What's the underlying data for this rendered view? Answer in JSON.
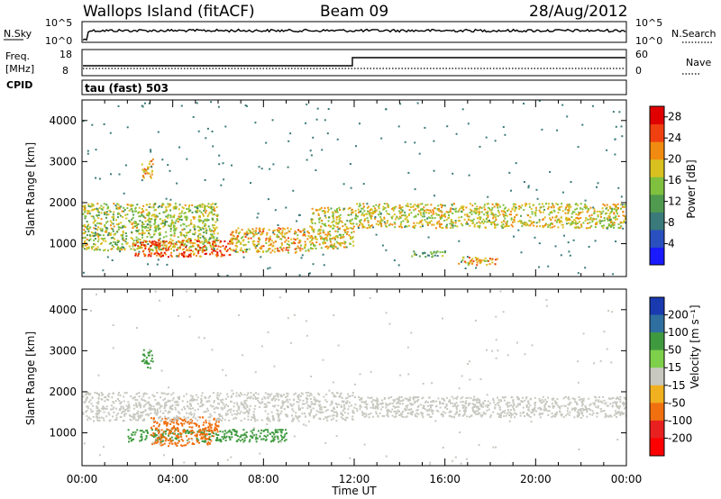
{
  "header": {
    "station": "Wallops Island (fitACF)",
    "beam": "Beam 09",
    "date": "28/Aug/2012"
  },
  "noise_panel": {
    "left_label": "N.Sky",
    "left_top_tick": "10^5",
    "left_bottom_tick": "10^0",
    "right_label": "N.Search",
    "right_top_tick": "10^5",
    "right_bottom_tick": "10^0"
  },
  "freq_panel": {
    "left_label_line1": "Freq.",
    "left_label_line2": "[MHz]",
    "left_top_tick": "18",
    "left_bottom_tick": "8",
    "cpid_label": "CPID",
    "right_label": "Nave",
    "right_top_tick": "60",
    "right_bottom_tick": "0"
  },
  "cpid_text": "tau (fast) 503",
  "chart_data": [
    {
      "type": "heatmap",
      "name": "power",
      "ylabel": "Slant Range [km]",
      "xlabel": "",
      "ylim": [
        200,
        4500
      ],
      "yticks": [
        "1000",
        "2000",
        "3000",
        "4000"
      ],
      "colorbar": {
        "label": "Power [dB]",
        "ticks": [
          "4",
          "8",
          "12",
          "16",
          "20",
          "24",
          "28"
        ],
        "range": [
          0,
          30
        ],
        "colors": [
          "#1a1aff",
          "#2a4fbf",
          "#3a7a7a",
          "#4f9a4f",
          "#7fc03f",
          "#d8c020",
          "#f08a10",
          "#f04010",
          "#e00000"
        ]
      },
      "regions": [
        {
          "label": "mid-latitude band 00-06 UT",
          "t": [
            0.0,
            6.0
          ],
          "range_km": [
            850,
            2000
          ],
          "power_db": 16
        },
        {
          "label": "strong echo near 04-05 UT",
          "t": [
            2.2,
            6.5
          ],
          "range_km": [
            700,
            1100
          ],
          "power_db": 24
        },
        {
          "label": "patch near 03 UT",
          "t": [
            2.6,
            3.1
          ],
          "range_km": [
            2600,
            3100
          ],
          "power_db": 20
        },
        {
          "label": "feature 07-10 UT",
          "t": [
            6.5,
            10.0
          ],
          "range_km": [
            800,
            1400
          ],
          "power_db": 20
        },
        {
          "label": "feature 10-12 UT",
          "t": [
            10.0,
            12.0
          ],
          "range_km": [
            900,
            1900
          ],
          "power_db": 18
        },
        {
          "label": "band 12-24 UT",
          "t": [
            12.0,
            24.0
          ],
          "range_km": [
            1400,
            2000
          ],
          "power_db": 18
        },
        {
          "label": "patch 17-18 UT",
          "t": [
            16.5,
            18.3
          ],
          "range_km": [
            500,
            700
          ],
          "power_db": 20
        },
        {
          "label": "patch 15 UT",
          "t": [
            14.5,
            16.0
          ],
          "range_km": [
            700,
            850
          ],
          "power_db": 12
        }
      ]
    },
    {
      "type": "heatmap",
      "name": "velocity",
      "ylabel": "Slant Range [km]",
      "xlabel": "Time UT",
      "ylim": [
        200,
        4500
      ],
      "yticks": [
        "1000",
        "2000",
        "3000",
        "4000"
      ],
      "xticks": [
        "00:00",
        "04:00",
        "08:00",
        "12:00",
        "16:00",
        "20:00",
        "00:00"
      ],
      "xlim": [
        0,
        24
      ],
      "colorbar": {
        "label": "Velocity [m s⁻¹]",
        "ticks": [
          "200",
          "100",
          "50",
          "15",
          "-15",
          "-50",
          "-100",
          "-200"
        ],
        "colors": [
          "#1a3ab0",
          "#2f6f9f",
          "#3f9a3f",
          "#7ed04a",
          "#c8c8c0",
          "#f0b020",
          "#f07010",
          "#e82020",
          "#ff0000"
        ]
      },
      "regions": [
        {
          "label": "green band 02-09 UT",
          "t": [
            2.0,
            9.0
          ],
          "range_km": [
            800,
            1100
          ],
          "velocity": 60
        },
        {
          "label": "orange region 03-06 UT",
          "t": [
            3.0,
            6.0
          ],
          "range_km": [
            700,
            1400
          ],
          "velocity": -60
        },
        {
          "label": "grey band 00-12 UT",
          "t": [
            0.0,
            12.0
          ],
          "range_km": [
            1300,
            2000
          ],
          "velocity": 0
        },
        {
          "label": "grey band 12-24 UT",
          "t": [
            12.0,
            24.0
          ],
          "range_km": [
            1400,
            1900
          ],
          "velocity": 0
        },
        {
          "label": "green patch near 03 UT",
          "t": [
            2.6,
            3.1
          ],
          "range_km": [
            2600,
            3100
          ],
          "velocity": 60
        }
      ]
    }
  ]
}
